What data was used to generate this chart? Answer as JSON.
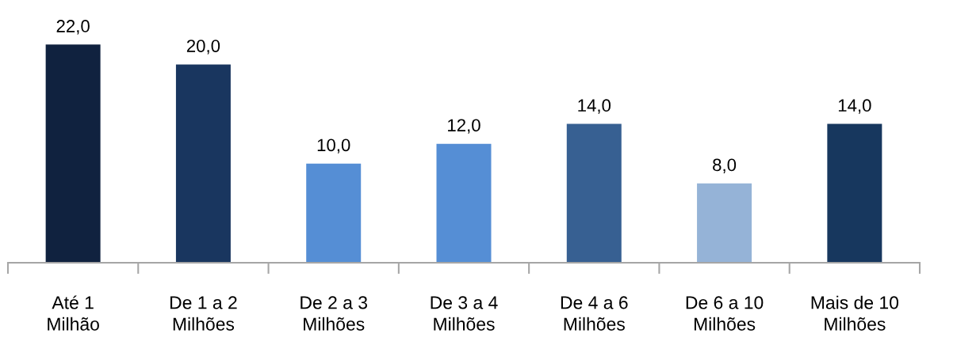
{
  "chart_data": {
    "type": "bar",
    "categories": [
      "Até 1\nMilhão",
      "De 1 a 2\nMilhões",
      "De 2 a 3\nMilhões",
      "De 3 a 4\nMilhões",
      "De 4 a 6\nMilhões",
      "De 6 a 10\nMilhões",
      "Mais de 10\nMilhões"
    ],
    "values": [
      22,
      20,
      10,
      12,
      14,
      8,
      14
    ],
    "colors": [
      "#10223f",
      "#19365f",
      "#558ed5",
      "#558ed5",
      "#376092",
      "#95b3d7",
      "#17375e"
    ],
    "value_labels": [
      "22,0",
      "20,0",
      "10,0",
      "12,0",
      "14,0",
      "8,0",
      "14,0"
    ],
    "tick_labels": "x"
  }
}
